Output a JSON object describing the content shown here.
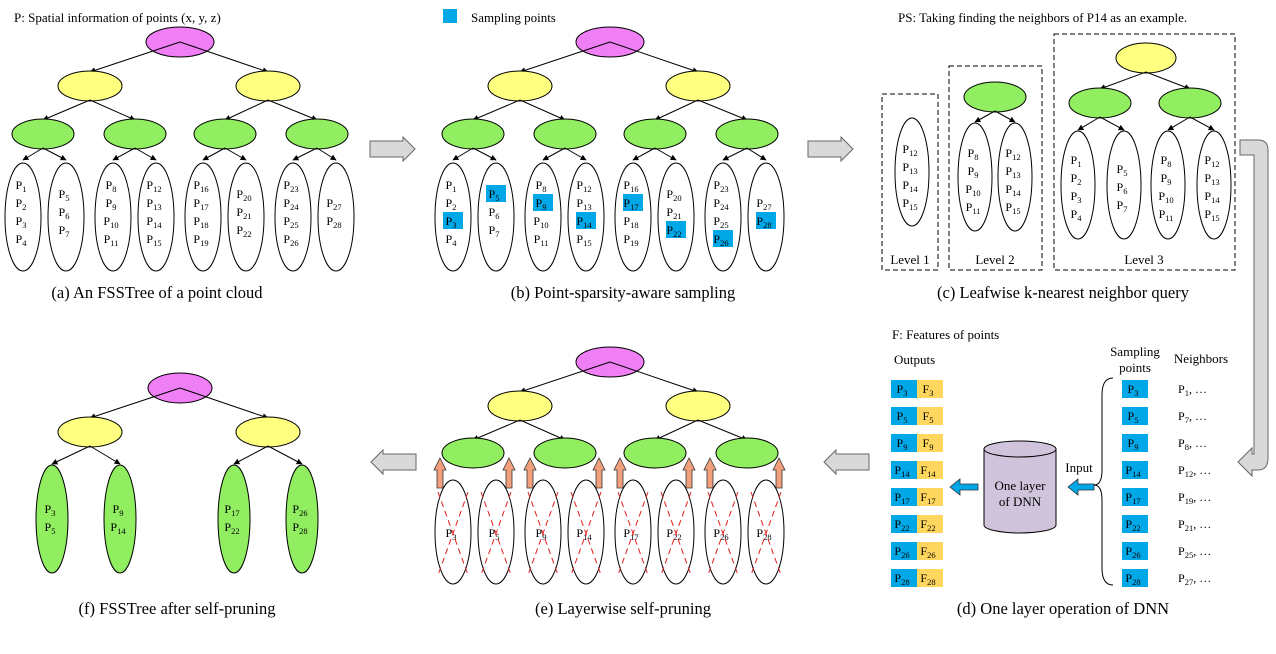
{
  "colors": {
    "root": "#f07ef5",
    "level1": "#ffff80",
    "level2": "#90ee60",
    "sample": "#00a8e8",
    "feature": "#ffd75e",
    "dnn": "#d0c4dc",
    "arrow_gray": "#d9d9d9",
    "arrow_orange": "#f2a07b",
    "cross": "#e02020"
  },
  "panel_a": {
    "note": "P: Spatial information of points (x, y, z)",
    "caption": "(a) An FSSTree of a point cloud",
    "leaves": [
      [
        "1",
        "2",
        "3",
        "4"
      ],
      [
        "5",
        "6",
        "7"
      ],
      [
        "8",
        "9",
        "10",
        "11"
      ],
      [
        "12",
        "13",
        "14",
        "15"
      ],
      [
        "16",
        "17",
        "18",
        "19"
      ],
      [
        "20",
        "21",
        "22"
      ],
      [
        "23",
        "24",
        "25",
        "26"
      ],
      [
        "27",
        "28"
      ]
    ]
  },
  "panel_b": {
    "legend": "Sampling points",
    "caption": "(b) Point-sparsity-aware sampling",
    "sampled": [
      "3",
      "5",
      "9",
      "14",
      "17",
      "22",
      "26",
      "28"
    ]
  },
  "panel_c": {
    "note": "PS: Taking finding the neighbors of P14 as an example.",
    "caption": "(c) Leafwise k-nearest neighbor query",
    "level_labels": [
      "Level 1",
      "Level 2",
      "Level 3"
    ],
    "level1_leaf": [
      "12",
      "13",
      "14",
      "15"
    ],
    "level2_leaves": [
      [
        "8",
        "9",
        "10",
        "11"
      ],
      [
        "12",
        "13",
        "14",
        "15"
      ]
    ],
    "level3_leaves": [
      [
        "1",
        "2",
        "3",
        "4"
      ],
      [
        "5",
        "6",
        "7"
      ],
      [
        "8",
        "9",
        "10",
        "11"
      ],
      [
        "12",
        "13",
        "14",
        "15"
      ]
    ]
  },
  "panel_d": {
    "note": "F: Features of points",
    "outputs_label": "Outputs",
    "sampling_label": [
      "Sampling",
      "points"
    ],
    "neighbors_label": "Neighbors",
    "input_label": "Input",
    "dnn_label": [
      "One layer",
      "of DNN"
    ],
    "caption": "(d) One layer operation of DNN",
    "rows": [
      {
        "p": "3",
        "f": "3",
        "n": "1"
      },
      {
        "p": "5",
        "f": "5",
        "n": "7"
      },
      {
        "p": "9",
        "f": "9",
        "n": "8"
      },
      {
        "p": "14",
        "f": "14",
        "n": "12"
      },
      {
        "p": "17",
        "f": "17",
        "n": "19"
      },
      {
        "p": "22",
        "f": "22",
        "n": "21"
      },
      {
        "p": "26",
        "f": "26",
        "n": "25"
      },
      {
        "p": "28",
        "f": "28",
        "n": "27"
      }
    ]
  },
  "panel_e": {
    "caption": "(e) Layerwise self-pruning",
    "leaves": [
      "3",
      "5",
      "9",
      "14",
      "17",
      "22",
      "26",
      "28"
    ]
  },
  "panel_f": {
    "caption": "(f) FSSTree after self-pruning",
    "leaves": [
      [
        "3",
        "5"
      ],
      [
        "9",
        "14"
      ],
      [
        "17",
        "22"
      ],
      [
        "26",
        "28"
      ]
    ]
  }
}
